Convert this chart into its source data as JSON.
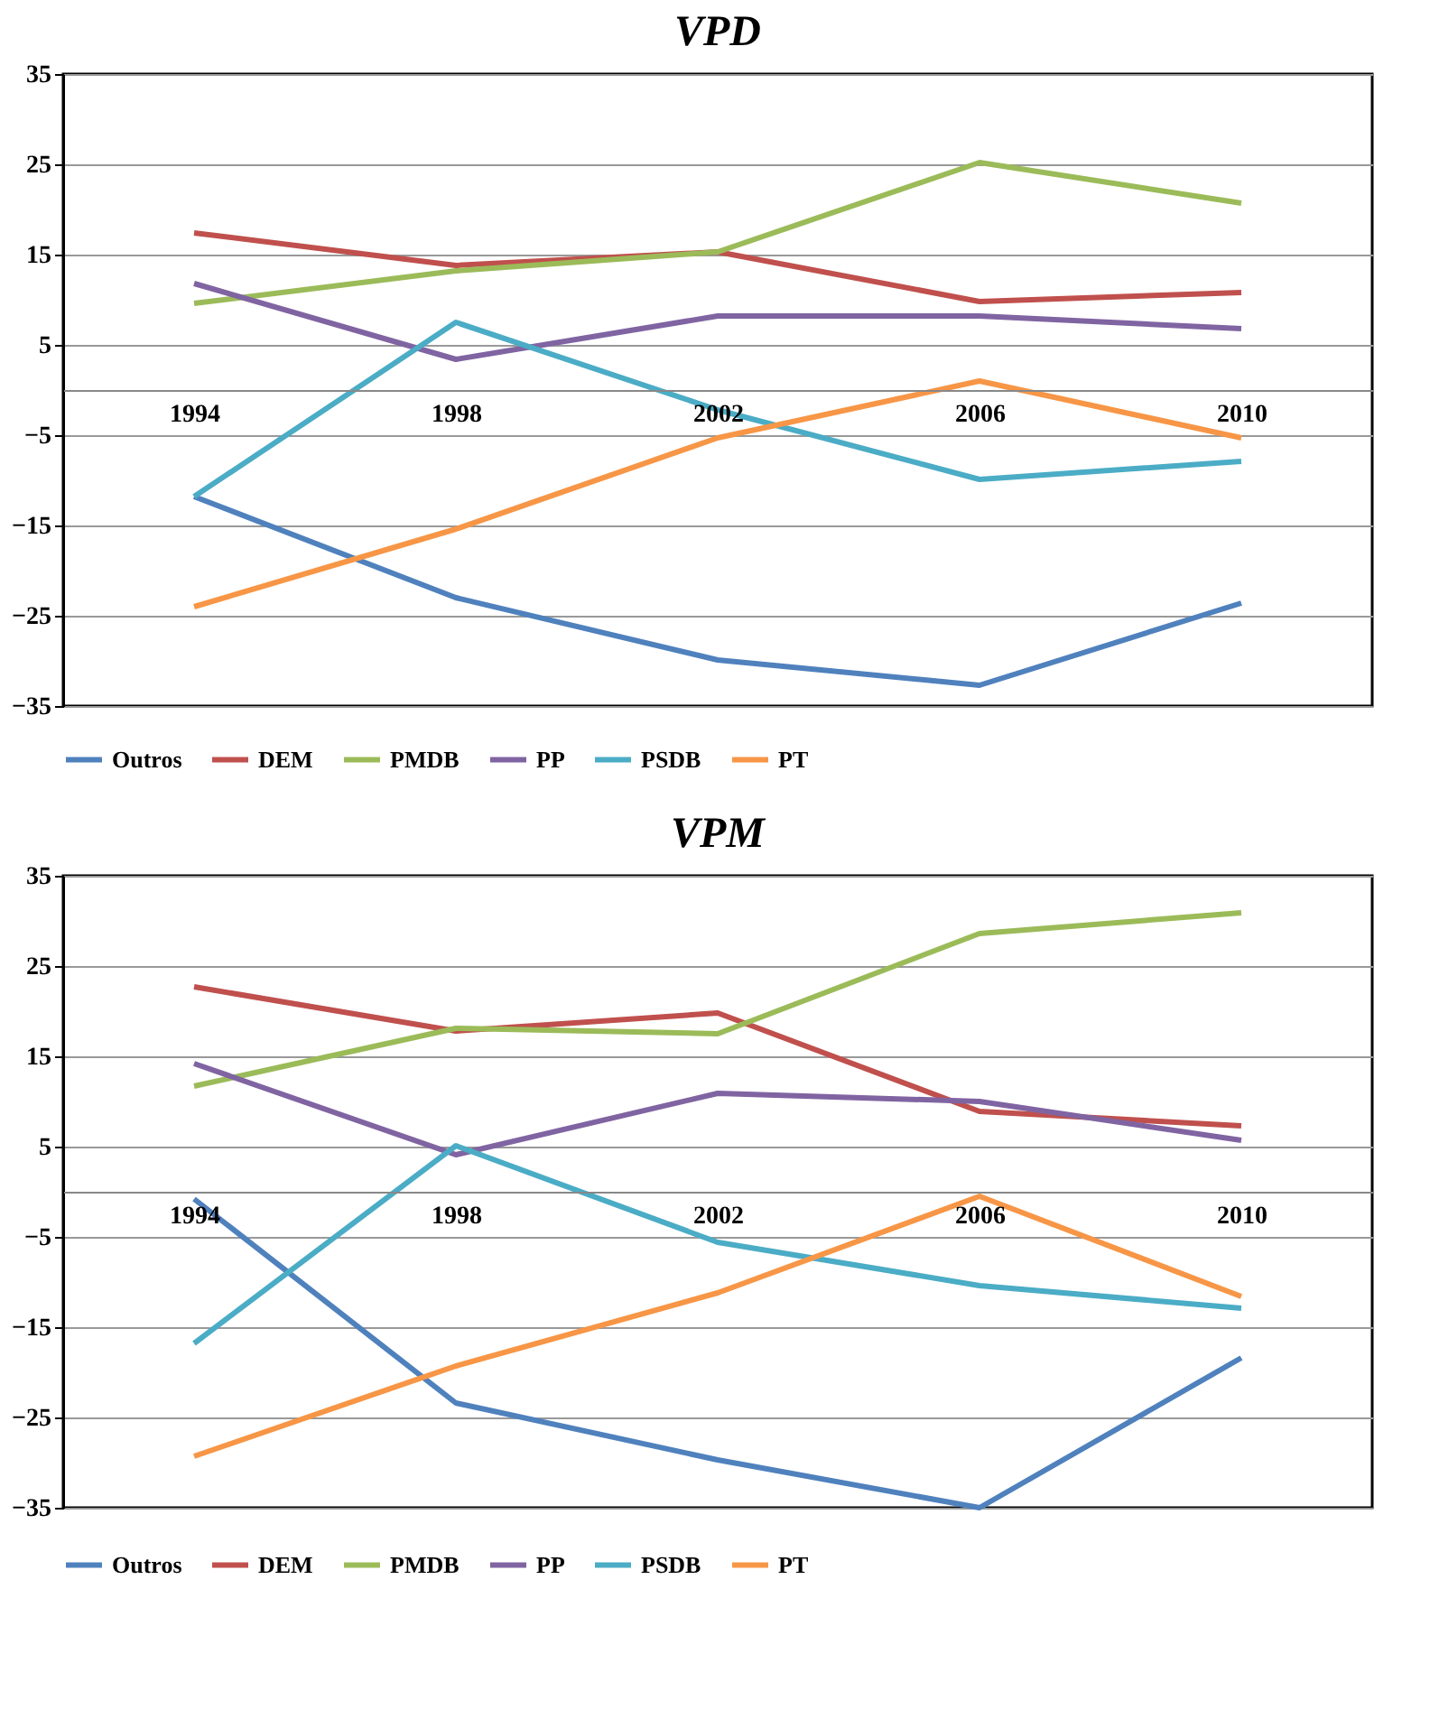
{
  "chart_data": [
    {
      "type": "line",
      "title": "VPD",
      "categories": [
        "1994",
        "1998",
        "2002",
        "2006",
        "2010"
      ],
      "ylim": [
        -35,
        35
      ],
      "yticks": [
        -35,
        -25,
        -15,
        -5,
        5,
        15,
        25,
        35
      ],
      "grid": "y",
      "legend": "bottom",
      "marker": "none",
      "series": [
        {
          "name": "Outros",
          "color": "#4f81bd",
          "values": [
            -11.8,
            -23,
            -29.9,
            -32.7,
            -23.6
          ]
        },
        {
          "name": "DEM",
          "color": "#c0504d",
          "values": [
            17.4,
            13.8,
            15.3,
            9.8,
            10.8
          ]
        },
        {
          "name": "PMDB",
          "color": "#9bbb59",
          "values": [
            9.6,
            13.2,
            15.3,
            25.2,
            20.7
          ]
        },
        {
          "name": "PP",
          "color": "#8064a2",
          "values": [
            11.8,
            3.4,
            8.2,
            8.2,
            6.8
          ]
        },
        {
          "name": "PSDB",
          "color": "#4bacc6",
          "values": [
            -11.8,
            7.5,
            -2.2,
            -9.9,
            -7.9
          ]
        },
        {
          "name": "PT",
          "color": "#f79646",
          "values": [
            -24,
            -15.4,
            -5.3,
            1.0,
            -5.3
          ]
        }
      ]
    },
    {
      "type": "line",
      "title": "VPM",
      "categories": [
        "1994",
        "1998",
        "2002",
        "2006",
        "2010"
      ],
      "ylim": [
        -35,
        35
      ],
      "yticks": [
        -35,
        -25,
        -15,
        -5,
        5,
        15,
        25,
        35
      ],
      "grid": "y",
      "legend": "bottom",
      "marker": "none",
      "series": [
        {
          "name": "Outros",
          "color": "#4f81bd",
          "values": [
            -0.8,
            -23.4,
            -29.7,
            -35,
            -18.4
          ]
        },
        {
          "name": "DEM",
          "color": "#c0504d",
          "values": [
            22.7,
            17.8,
            19.8,
            8.9,
            7.3
          ]
        },
        {
          "name": "PMDB",
          "color": "#9bbb59",
          "values": [
            11.7,
            18.1,
            17.5,
            28.6,
            30.9
          ]
        },
        {
          "name": "PP",
          "color": "#8064a2",
          "values": [
            14.2,
            4.1,
            10.9,
            10.0,
            5.7
          ]
        },
        {
          "name": "PSDB",
          "color": "#4bacc6",
          "values": [
            -16.8,
            5.1,
            -5.6,
            -10.4,
            -12.9
          ]
        },
        {
          "name": "PT",
          "color": "#f79646",
          "values": [
            -29.3,
            -19.3,
            -11.2,
            -0.5,
            -11.6
          ]
        }
      ]
    }
  ]
}
